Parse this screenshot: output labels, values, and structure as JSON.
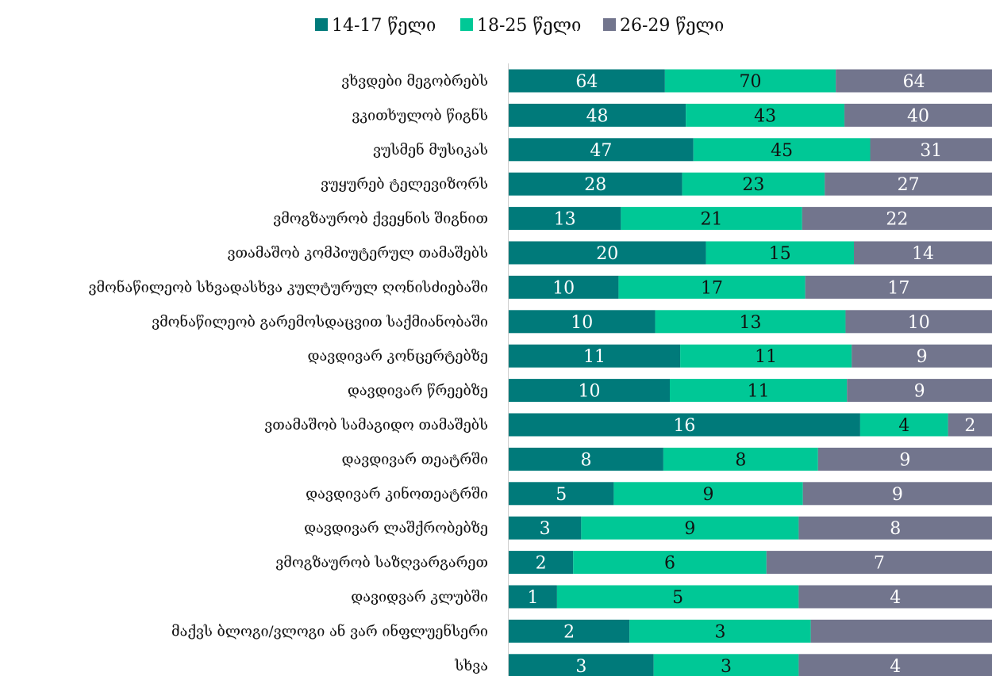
{
  "chart_data": {
    "type": "bar",
    "orientation": "horizontal",
    "stacked": "percent",
    "legend_position": "top-center",
    "grid": false,
    "categories": [
      "ვხვდები მეგობრებს",
      "ვკითხულობ წიგნს",
      "ვუსმენ მუსიკას",
      "ვუყურებ ტელევიზორს",
      "ვმოგზაურობ ქვეყნის შიგნით",
      "ვთამაშობ კომპიუტერულ თამაშებს",
      "ვმონაწილეობ სხვადასხვა კულტურულ ღონისძიებაში",
      "ვმონაწილეობ გარემოსდაცვით საქმიანობაში",
      "დავდივარ კონცერტებზე",
      "დავდივარ წრეებზე",
      "ვთამაშობ სამაგიდო თამაშებს",
      "დავდივარ თეატრში",
      "დავდივარ კინოთეატრში",
      "დავდივარ ლაშქრობებზე",
      "ვმოგზაურობ საზღვარგარეთ",
      "დავიდვარ კლუბში",
      "მაქვს ბლოგი/ვლოგი ან ვარ ინფლუენსერი",
      "სხვა"
    ],
    "series": [
      {
        "name": "14-17 წელი",
        "color": "#007A7A",
        "label_color": "#ffffff",
        "values": [
          64,
          48,
          47,
          28,
          13,
          20,
          10,
          10,
          11,
          10,
          16,
          8,
          5,
          3,
          2,
          1,
          2,
          3
        ]
      },
      {
        "name": "18-25 წელი",
        "color": "#00C896",
        "label_color": "#111111",
        "values": [
          70,
          43,
          45,
          23,
          21,
          15,
          17,
          13,
          11,
          11,
          4,
          8,
          9,
          9,
          6,
          5,
          3,
          3
        ]
      },
      {
        "name": "26-29 წელი",
        "color": "#72758D",
        "label_color": "#ffffff",
        "values": [
          64,
          40,
          31,
          27,
          22,
          14,
          17,
          10,
          9,
          9,
          2,
          9,
          9,
          8,
          7,
          4,
          3,
          4
        ]
      }
    ],
    "value_labels_hidden": [
      [],
      [],
      [],
      [],
      [],
      [],
      [],
      [],
      [],
      [],
      [],
      [],
      [],
      [],
      [],
      [],
      [
        2
      ],
      []
    ]
  }
}
